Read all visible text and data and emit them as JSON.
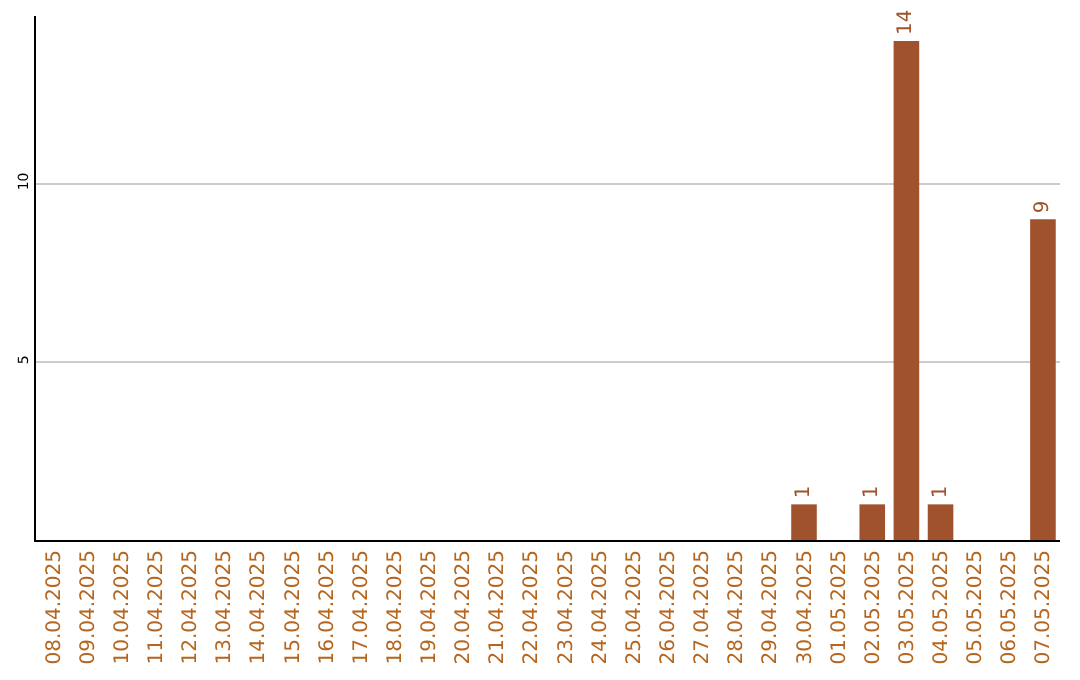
{
  "chart_data": {
    "type": "bar",
    "categories": [
      "08.04.2025",
      "09.04.2025",
      "10.04.2025",
      "11.04.2025",
      "12.04.2025",
      "13.04.2025",
      "14.04.2025",
      "15.04.2025",
      "16.04.2025",
      "17.04.2025",
      "18.04.2025",
      "19.04.2025",
      "20.04.2025",
      "21.04.2025",
      "22.04.2025",
      "23.04.2025",
      "24.04.2025",
      "25.04.2025",
      "26.04.2025",
      "27.04.2025",
      "28.04.2025",
      "29.04.2025",
      "30.04.2025",
      "01.05.2025",
      "02.05.2025",
      "03.05.2025",
      "04.05.2025",
      "05.05.2025",
      "06.05.2025",
      "07.05.2025"
    ],
    "values": [
      0,
      0,
      0,
      0,
      0,
      0,
      0,
      0,
      0,
      0,
      0,
      0,
      0,
      0,
      0,
      0,
      0,
      0,
      0,
      0,
      0,
      0,
      1,
      0,
      1,
      14,
      1,
      0,
      0,
      9
    ],
    "value_labels": [
      null,
      null,
      null,
      null,
      null,
      null,
      null,
      null,
      null,
      null,
      null,
      null,
      null,
      null,
      null,
      null,
      null,
      null,
      null,
      null,
      null,
      null,
      "1",
      null,
      "1",
      "14",
      "1",
      null,
      null,
      "9"
    ],
    "color": "#a0522d",
    "ylim": [
      0,
      14.7
    ],
    "yticks": [
      5,
      10
    ],
    "grid": "y",
    "legend": false
  }
}
